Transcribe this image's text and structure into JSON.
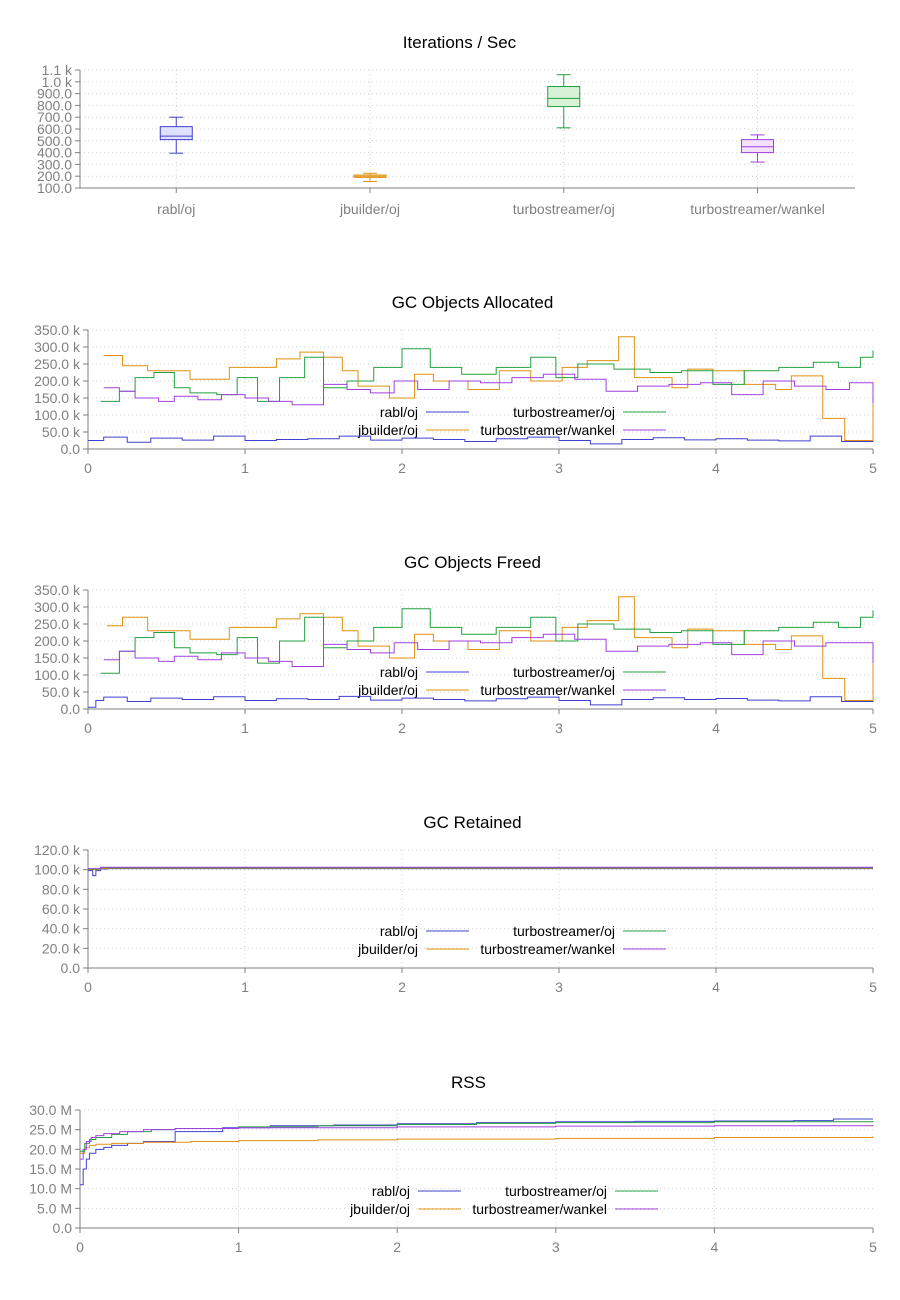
{
  "chart_data": [
    {
      "type": "box",
      "title": "Iterations / Sec",
      "categories": [
        "rabl/oj",
        "jbuilder/oj",
        "turbostreamer/oj",
        "turbostreamer/wankel"
      ],
      "ylim": [
        100,
        1100
      ],
      "yticks": [
        100,
        200,
        300,
        400,
        500,
        600,
        700,
        800,
        900,
        1000,
        1100
      ],
      "ytick_labels": [
        "100.0",
        "200.0",
        "300.0",
        "400.0",
        "500.0",
        "600.0",
        "700.0",
        "800.0",
        "900.0",
        "1.0 k",
        "1.1 k"
      ],
      "boxes": [
        {
          "name": "rabl/oj",
          "min": 395,
          "q1": 510,
          "median": 540,
          "q3": 620,
          "max": 700,
          "color": "#4040d0",
          "fill": "#e0e0ff"
        },
        {
          "name": "jbuilder/oj",
          "min": 155,
          "q1": 190,
          "median": 200,
          "q3": 210,
          "max": 225,
          "color": "#e09010",
          "fill": "#fff0d0"
        },
        {
          "name": "turbostreamer/oj",
          "min": 610,
          "q1": 790,
          "median": 860,
          "q3": 960,
          "max": 1060,
          "color": "#20a040",
          "fill": "#d8f2d8"
        },
        {
          "name": "turbostreamer/wankel",
          "min": 320,
          "q1": 400,
          "median": 450,
          "q3": 510,
          "max": 550,
          "color": "#a040e0",
          "fill": "#f4e0ff"
        }
      ]
    },
    {
      "type": "line",
      "step": true,
      "title": "GC Objects Allocated",
      "xlim": [
        0,
        5
      ],
      "xticks": [
        0,
        1,
        2,
        3,
        4,
        5
      ],
      "ylim": [
        0,
        350000
      ],
      "yticks": [
        0,
        50000,
        100000,
        150000,
        200000,
        250000,
        300000,
        350000
      ],
      "ytick_labels": [
        "0.0",
        "50.0 k",
        "100.0 k",
        "150.0 k",
        "200.0 k",
        "250.0 k",
        "300.0 k",
        "350.0 k"
      ],
      "legend": [
        "rabl/oj",
        "jbuilder/oj",
        "turbostreamer/oj",
        "turbostreamer/wankel"
      ],
      "series": [
        {
          "name": "rabl/oj",
          "color": "#4040d0",
          "x": [
            0.0,
            0.1,
            0.25,
            0.4,
            0.6,
            0.8,
            1.0,
            1.2,
            1.4,
            1.6,
            1.8,
            2.0,
            2.2,
            2.4,
            2.6,
            2.8,
            3.0,
            3.2,
            3.4,
            3.6,
            3.8,
            4.0,
            4.2,
            4.4,
            4.6,
            4.8,
            5.0
          ],
          "y": [
            25000,
            35000,
            20000,
            32000,
            26000,
            38000,
            25000,
            28000,
            30000,
            38000,
            26000,
            32000,
            28000,
            22000,
            30000,
            35000,
            25000,
            15000,
            28000,
            33000,
            27000,
            30000,
            26000,
            24000,
            38000,
            22000,
            25000
          ]
        },
        {
          "name": "jbuilder/oj",
          "color": "#e09010",
          "x": [
            0.1,
            0.22,
            0.38,
            0.65,
            0.9,
            1.2,
            1.35,
            1.5,
            1.62,
            1.72,
            1.92,
            2.08,
            2.2,
            2.42,
            2.62,
            2.82,
            3.02,
            3.18,
            3.38,
            3.48,
            3.72,
            3.82,
            3.98,
            4.18,
            4.38,
            4.48,
            4.68,
            4.82,
            5.0
          ],
          "y": [
            275000,
            245000,
            230000,
            205000,
            240000,
            265000,
            285000,
            270000,
            230000,
            185000,
            150000,
            220000,
            200000,
            175000,
            230000,
            200000,
            240000,
            260000,
            330000,
            210000,
            180000,
            235000,
            230000,
            190000,
            175000,
            215000,
            90000,
            25000,
            135000
          ]
        },
        {
          "name": "turbostreamer/oj",
          "color": "#20a040",
          "x": [
            0.08,
            0.2,
            0.3,
            0.42,
            0.55,
            0.65,
            0.82,
            0.95,
            1.08,
            1.22,
            1.38,
            1.5,
            1.65,
            1.82,
            2.0,
            2.18,
            2.38,
            2.6,
            2.82,
            2.98,
            3.12,
            3.35,
            3.58,
            3.78,
            3.98,
            4.18,
            4.4,
            4.62,
            4.78,
            4.92,
            5.0
          ],
          "y": [
            140000,
            170000,
            210000,
            225000,
            180000,
            165000,
            160000,
            210000,
            140000,
            210000,
            270000,
            180000,
            200000,
            240000,
            295000,
            240000,
            220000,
            240000,
            270000,
            210000,
            250000,
            235000,
            225000,
            230000,
            190000,
            230000,
            240000,
            255000,
            240000,
            270000,
            290000
          ]
        },
        {
          "name": "turbostreamer/wankel",
          "color": "#a040e0",
          "x": [
            0.1,
            0.2,
            0.3,
            0.45,
            0.55,
            0.7,
            0.85,
            1.0,
            1.15,
            1.3,
            1.5,
            1.65,
            1.8,
            1.95,
            2.1,
            2.3,
            2.5,
            2.7,
            2.9,
            3.1,
            3.3,
            3.5,
            3.7,
            3.9,
            4.1,
            4.3,
            4.5,
            4.7,
            4.85,
            5.0
          ],
          "y": [
            180000,
            170000,
            150000,
            140000,
            155000,
            145000,
            160000,
            150000,
            140000,
            130000,
            190000,
            175000,
            165000,
            200000,
            175000,
            200000,
            195000,
            210000,
            220000,
            205000,
            170000,
            185000,
            190000,
            195000,
            160000,
            200000,
            185000,
            175000,
            195000,
            135000
          ]
        }
      ]
    },
    {
      "type": "line",
      "step": true,
      "title": "GC Objects Freed",
      "xlim": [
        0,
        5
      ],
      "xticks": [
        0,
        1,
        2,
        3,
        4,
        5
      ],
      "ylim": [
        0,
        350000
      ],
      "yticks": [
        0,
        50000,
        100000,
        150000,
        200000,
        250000,
        300000,
        350000
      ],
      "ytick_labels": [
        "0.0",
        "50.0 k",
        "100.0 k",
        "150.0 k",
        "200.0 k",
        "250.0 k",
        "300.0 k",
        "350.0 k"
      ],
      "legend": [
        "rabl/oj",
        "jbuilder/oj",
        "turbostreamer/oj",
        "turbostreamer/wankel"
      ],
      "series": [
        {
          "name": "rabl/oj",
          "color": "#4040d0",
          "x": [
            0.0,
            0.05,
            0.1,
            0.25,
            0.4,
            0.6,
            0.8,
            1.0,
            1.2,
            1.4,
            1.6,
            1.8,
            2.0,
            2.2,
            2.4,
            2.6,
            2.8,
            3.0,
            3.2,
            3.4,
            3.6,
            3.8,
            4.0,
            4.2,
            4.4,
            4.6,
            4.8,
            5.0
          ],
          "y": [
            5000,
            25000,
            35000,
            22000,
            32000,
            28000,
            36000,
            25000,
            30000,
            28000,
            37000,
            26000,
            32000,
            28000,
            24000,
            30000,
            35000,
            25000,
            12000,
            28000,
            33000,
            28000,
            31000,
            26000,
            24000,
            36000,
            22000,
            28000
          ]
        },
        {
          "name": "jbuilder/oj",
          "color": "#e09010",
          "x": [
            0.12,
            0.22,
            0.38,
            0.65,
            0.9,
            1.2,
            1.35,
            1.5,
            1.62,
            1.72,
            1.92,
            2.08,
            2.2,
            2.42,
            2.62,
            2.82,
            3.02,
            3.18,
            3.38,
            3.48,
            3.72,
            3.82,
            3.98,
            4.18,
            4.38,
            4.48,
            4.68,
            4.82,
            5.0
          ],
          "y": [
            245000,
            270000,
            230000,
            205000,
            240000,
            265000,
            280000,
            270000,
            230000,
            185000,
            150000,
            220000,
            200000,
            175000,
            230000,
            200000,
            240000,
            260000,
            330000,
            210000,
            180000,
            235000,
            230000,
            190000,
            175000,
            215000,
            90000,
            25000,
            135000
          ]
        },
        {
          "name": "turbostreamer/oj",
          "color": "#20a040",
          "x": [
            0.08,
            0.2,
            0.3,
            0.42,
            0.55,
            0.65,
            0.82,
            0.95,
            1.08,
            1.22,
            1.38,
            1.5,
            1.65,
            1.82,
            2.0,
            2.18,
            2.38,
            2.6,
            2.82,
            2.98,
            3.12,
            3.35,
            3.58,
            3.78,
            3.98,
            4.18,
            4.4,
            4.62,
            4.78,
            4.92,
            5.0
          ],
          "y": [
            105000,
            170000,
            210000,
            225000,
            180000,
            165000,
            160000,
            210000,
            135000,
            200000,
            270000,
            180000,
            200000,
            240000,
            295000,
            240000,
            220000,
            240000,
            270000,
            200000,
            250000,
            235000,
            225000,
            230000,
            190000,
            230000,
            240000,
            255000,
            240000,
            270000,
            290000
          ]
        },
        {
          "name": "turbostreamer/wankel",
          "color": "#a040e0",
          "x": [
            0.1,
            0.2,
            0.3,
            0.45,
            0.55,
            0.7,
            0.85,
            1.0,
            1.15,
            1.3,
            1.5,
            1.65,
            1.8,
            1.95,
            2.1,
            2.3,
            2.5,
            2.7,
            2.9,
            3.1,
            3.3,
            3.5,
            3.7,
            3.9,
            4.1,
            4.3,
            4.5,
            4.7,
            4.85,
            5.0
          ],
          "y": [
            145000,
            170000,
            150000,
            140000,
            155000,
            145000,
            165000,
            150000,
            140000,
            125000,
            190000,
            175000,
            165000,
            195000,
            175000,
            200000,
            195000,
            210000,
            220000,
            205000,
            170000,
            185000,
            190000,
            195000,
            160000,
            200000,
            185000,
            195000,
            195000,
            135000
          ]
        }
      ]
    },
    {
      "type": "line",
      "step": true,
      "title": "GC Retained",
      "xlim": [
        0,
        5
      ],
      "xticks": [
        0,
        1,
        2,
        3,
        4,
        5
      ],
      "ylim": [
        0,
        120000
      ],
      "yticks": [
        0,
        20000,
        40000,
        60000,
        80000,
        100000,
        120000
      ],
      "ytick_labels": [
        "0.0",
        "20.0 k",
        "40.0 k",
        "60.0 k",
        "80.0 k",
        "100.0 k",
        "120.0 k"
      ],
      "legend": [
        "rabl/oj",
        "jbuilder/oj",
        "turbostreamer/oj",
        "turbostreamer/wankel"
      ],
      "series": [
        {
          "name": "rabl/oj",
          "color": "#4040d0",
          "x": [
            0.0,
            0.03,
            0.05,
            0.08,
            0.12,
            5.0
          ],
          "y": [
            99000,
            94000,
            99000,
            100500,
            101000,
            101000
          ]
        },
        {
          "name": "jbuilder/oj",
          "color": "#e09010",
          "x": [
            0.0,
            0.08,
            0.12,
            5.0
          ],
          "y": [
            100000,
            101000,
            101500,
            101500
          ]
        },
        {
          "name": "turbostreamer/oj",
          "color": "#20a040",
          "x": [
            0.0,
            0.08,
            0.12,
            5.0
          ],
          "y": [
            100500,
            102000,
            102000,
            102000
          ]
        },
        {
          "name": "turbostreamer/wankel",
          "color": "#a040e0",
          "x": [
            0.0,
            0.08,
            0.12,
            5.0
          ],
          "y": [
            101000,
            102500,
            102500,
            102500
          ]
        }
      ]
    },
    {
      "type": "line",
      "step": true,
      "title": "RSS",
      "xlim": [
        0,
        5
      ],
      "xticks": [
        0,
        1,
        2,
        3,
        4,
        5
      ],
      "ylim": [
        0,
        30000000
      ],
      "yticks": [
        0,
        5000000,
        10000000,
        15000000,
        20000000,
        25000000,
        30000000
      ],
      "ytick_labels": [
        "0.0",
        "5.0 M",
        "10.0 M",
        "15.0 M",
        "20.0 M",
        "25.0 M",
        "30.0 M"
      ],
      "legend": [
        "rabl/oj",
        "jbuilder/oj",
        "turbostreamer/oj",
        "turbostreamer/wankel"
      ],
      "series": [
        {
          "name": "rabl/oj",
          "color": "#4040d0",
          "x": [
            0.0,
            0.02,
            0.04,
            0.06,
            0.1,
            0.15,
            0.2,
            0.3,
            0.4,
            0.6,
            0.9,
            1.2,
            1.6,
            2.0,
            2.5,
            3.0,
            3.5,
            4.0,
            4.5,
            4.75,
            5.0
          ],
          "y": [
            11000000,
            15000000,
            17500000,
            19000000,
            20000000,
            20500000,
            21000000,
            21500000,
            22000000,
            24500000,
            25500000,
            26000000,
            26200000,
            26500000,
            26800000,
            27000000,
            27100000,
            27200000,
            27300000,
            27700000,
            27700000
          ]
        },
        {
          "name": "jbuilder/oj",
          "color": "#e09010",
          "x": [
            0.0,
            0.03,
            0.06,
            0.1,
            0.2,
            0.4,
            0.7,
            1.0,
            1.5,
            2.0,
            3.0,
            4.0,
            5.0
          ],
          "y": [
            19000000,
            20500000,
            21000000,
            21300000,
            21500000,
            21800000,
            22000000,
            22200000,
            22400000,
            22600000,
            22800000,
            23000000,
            23300000
          ]
        },
        {
          "name": "turbostreamer/oj",
          "color": "#20a040",
          "x": [
            0.0,
            0.03,
            0.06,
            0.1,
            0.2,
            0.3,
            0.45,
            0.6,
            1.0,
            1.5,
            2.0,
            2.5,
            3.0,
            4.0,
            5.0
          ],
          "y": [
            19500000,
            21500000,
            22500000,
            23000000,
            23800000,
            24500000,
            25000000,
            25300000,
            25700000,
            26000000,
            26300000,
            26600000,
            26800000,
            27000000,
            27200000
          ]
        },
        {
          "name": "turbostreamer/wankel",
          "color": "#a040e0",
          "x": [
            0.0,
            0.02,
            0.04,
            0.07,
            0.1,
            0.15,
            0.25,
            0.4,
            0.6,
            1.0,
            2.0,
            3.0,
            4.0,
            5.0
          ],
          "y": [
            17500000,
            20000000,
            22000000,
            23000000,
            23500000,
            24000000,
            24500000,
            25000000,
            25300000,
            25500000,
            25700000,
            25900000,
            26000000,
            26200000
          ]
        }
      ]
    }
  ]
}
